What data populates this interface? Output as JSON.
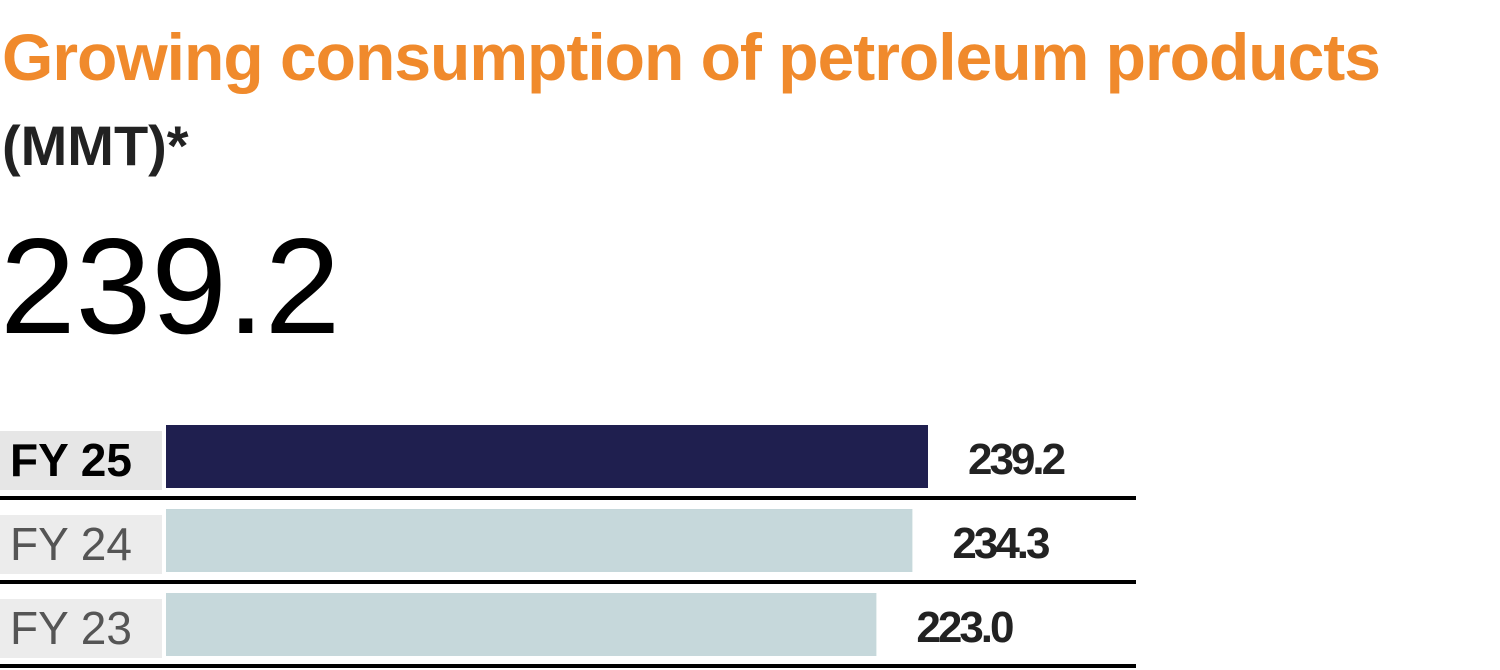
{
  "header": {
    "title": "Growing consumption of petroleum products",
    "unit": "(MMT)*",
    "headline_value": "239.2"
  },
  "colors": {
    "title": "#f08a2c",
    "highlight_bar": "#1f1f4f",
    "other_bar": "#c6d8db",
    "label_highlight_bg": "#e6e6e6",
    "label_bg": "#ececec",
    "divider": "#000000",
    "value_text": "#222222"
  },
  "chart_data": {
    "type": "bar",
    "orientation": "horizontal",
    "title": "Growing consumption of petroleum products",
    "unit": "(MMT)*",
    "categories": [
      "FY 25",
      "FY 24",
      "FY 23"
    ],
    "values": [
      239.2,
      234.3,
      223.0
    ],
    "value_labels": [
      "239.2",
      "234.3",
      "223.0"
    ],
    "highlight": "FY 25",
    "xlim": [
      0,
      239.2
    ]
  }
}
